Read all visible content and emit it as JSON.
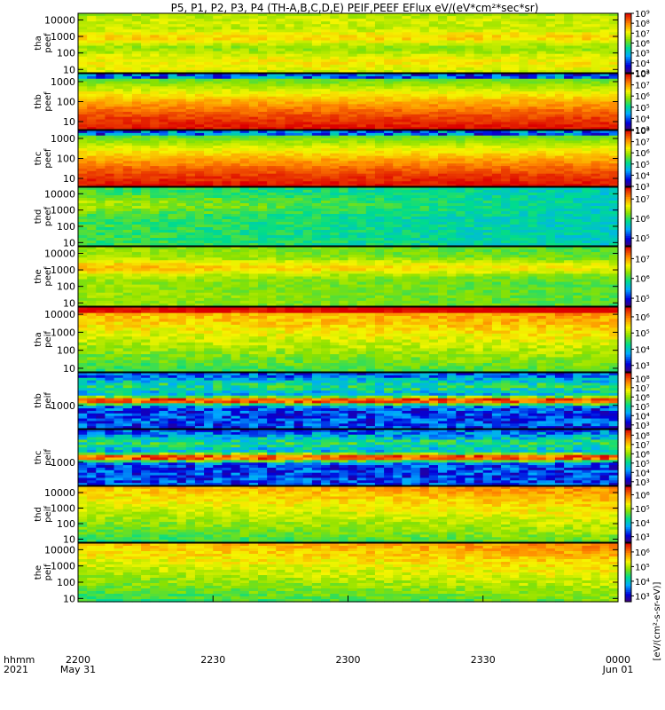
{
  "title": "P5, P1, P2, P3, P4 (TH-A,B,C,D,E) PEIF,PEEF EFlux eV/(eV*cm²*sec*sr)",
  "time_axis": {
    "row_label_1": "hhmm",
    "row_label_2": "2021",
    "ticks": [
      {
        "t": 0,
        "label": "2200",
        "sub": "May 31"
      },
      {
        "t": 30,
        "label": "2230",
        "sub": ""
      },
      {
        "t": 60,
        "label": "2300",
        "sub": ""
      },
      {
        "t": 90,
        "label": "2330",
        "sub": ""
      },
      {
        "t": 120,
        "label": "0000",
        "sub": "Jun 01"
      }
    ]
  },
  "colorbar_unit_label": "[eV/(cm²-s-sr-eV)]",
  "chart_data": [
    {
      "type": "heatmap",
      "name_line1": "tha",
      "name_line2": "peef",
      "yticks": [
        "10",
        "100",
        "1000",
        "10000"
      ],
      "yrange_log10": [
        0.8,
        4.4
      ],
      "cbar_ticks": [
        "10³",
        "10⁴",
        "10⁵",
        "10⁶",
        "10⁷",
        "10⁸",
        "10⁹"
      ],
      "cbar_range_exp": [
        3,
        9
      ]
    },
    {
      "type": "heatmap",
      "name_line1": "thb",
      "name_line2": "peef",
      "yticks": [
        "10",
        "100",
        "1000"
      ],
      "yrange_log10": [
        0.6,
        3.4
      ],
      "cbar_ticks": [
        "10³",
        "10⁴",
        "10⁵",
        "10⁶",
        "10⁷",
        "10⁸"
      ],
      "cbar_range_exp": [
        3,
        8
      ]
    },
    {
      "type": "heatmap",
      "name_line1": "thc",
      "name_line2": "peef",
      "yticks": [
        "10",
        "100",
        "1000"
      ],
      "yrange_log10": [
        0.6,
        3.4
      ],
      "cbar_ticks": [
        "10³",
        "10⁴",
        "10⁵",
        "10⁶",
        "10⁷",
        "10⁸"
      ],
      "cbar_range_exp": [
        3,
        8
      ]
    },
    {
      "type": "heatmap",
      "name_line1": "thd",
      "name_line2": "peef",
      "yticks": [
        "10",
        "100",
        "1000",
        "10000"
      ],
      "yrange_log10": [
        0.8,
        4.4
      ],
      "cbar_ticks": [
        "10⁵",
        "10⁶",
        "10⁷"
      ],
      "cbar_range_exp": [
        4.6,
        7.6
      ]
    },
    {
      "type": "heatmap",
      "name_line1": "the",
      "name_line2": "peef",
      "yticks": [
        "10",
        "100",
        "1000",
        "10000"
      ],
      "yrange_log10": [
        0.8,
        4.4
      ],
      "cbar_ticks": [
        "10⁵",
        "10⁶",
        "10⁷"
      ],
      "cbar_range_exp": [
        4.6,
        7.6
      ]
    },
    {
      "type": "heatmap",
      "name_line1": "tha",
      "name_line2": "peif",
      "yticks": [
        "10",
        "100",
        "1000",
        "10000"
      ],
      "yrange_log10": [
        0.8,
        4.4
      ],
      "cbar_ticks": [
        "10³",
        "10⁴",
        "10⁵",
        "10⁶"
      ],
      "cbar_range_exp": [
        2.6,
        6.6
      ]
    },
    {
      "type": "heatmap",
      "name_line1": "thb",
      "name_line2": "peif",
      "yticks": [
        "1000"
      ],
      "yrange_log10": [
        2.0,
        4.4
      ],
      "cbar_ticks": [
        "10³",
        "10⁴",
        "10⁵",
        "10⁶",
        "10⁷",
        "10⁸"
      ],
      "cbar_range_exp": [
        2.6,
        8.6
      ]
    },
    {
      "type": "heatmap",
      "name_line1": "thc",
      "name_line2": "peif",
      "yticks": [
        "1000"
      ],
      "yrange_log10": [
        2.0,
        4.4
      ],
      "cbar_ticks": [
        "10³",
        "10⁴",
        "10⁵",
        "10⁶",
        "10⁷",
        "10⁸"
      ],
      "cbar_range_exp": [
        2.6,
        8.6
      ]
    },
    {
      "type": "heatmap",
      "name_line1": "thd",
      "name_line2": "peif",
      "yticks": [
        "10",
        "100",
        "1000",
        "10000"
      ],
      "yrange_log10": [
        0.8,
        4.4
      ],
      "cbar_ticks": [
        "10³",
        "10⁴",
        "10⁵",
        "10⁶"
      ],
      "cbar_range_exp": [
        2.6,
        6.6
      ]
    },
    {
      "type": "heatmap",
      "name_line1": "the",
      "name_line2": "peif",
      "yticks": [
        "10",
        "100",
        "1000",
        "10000"
      ],
      "yrange_log10": [
        0.8,
        4.4
      ],
      "cbar_ticks": [
        "10³",
        "10⁴",
        "10⁵",
        "10⁶"
      ],
      "cbar_range_exp": [
        2.6,
        6.6
      ]
    }
  ]
}
